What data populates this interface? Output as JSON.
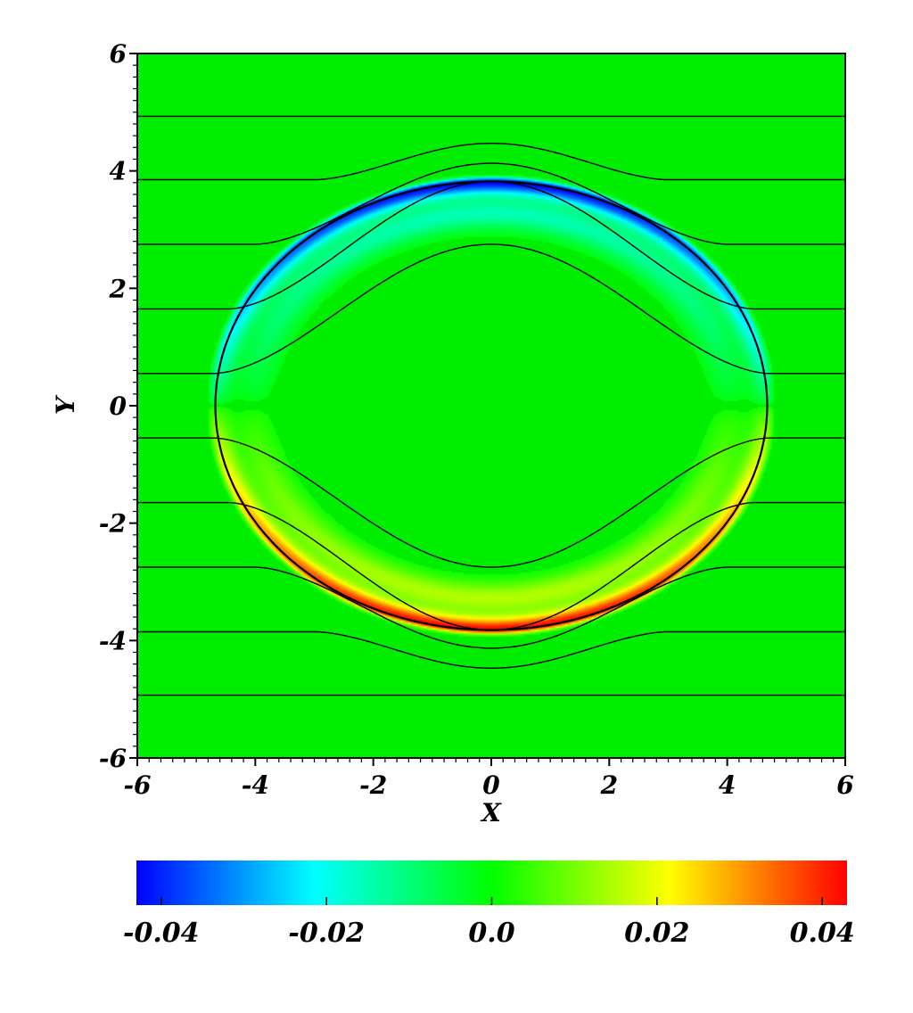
{
  "chart_data": {
    "type": "heatmap",
    "title": "",
    "xlabel": "X",
    "ylabel": "Y",
    "xlim": [
      -6,
      6
    ],
    "ylim": [
      -6,
      6
    ],
    "x_ticks": [
      "-6",
      "-4",
      "-2",
      "0",
      "2",
      "4",
      "6"
    ],
    "y_ticks": [
      "6",
      "4",
      "2",
      "0",
      "-2",
      "-4",
      "-6"
    ],
    "x_tick_values": [
      -6,
      -4,
      -2,
      0,
      2,
      4,
      6
    ],
    "y_tick_values": [
      6,
      4,
      2,
      0,
      -2,
      -4,
      -6
    ],
    "colorbar": {
      "orientation": "horizontal",
      "placement": "bottom",
      "range": [
        -0.043,
        0.043
      ],
      "ticks": [
        "-0.04",
        "-0.02",
        "0.0",
        "0.02",
        "0.04"
      ],
      "tick_values": [
        -0.04,
        -0.02,
        0.0,
        0.02,
        0.04
      ],
      "colormap": [
        "#0000ff",
        "#00ffff",
        "#00ff00",
        "#ffff00",
        "#ff0000"
      ]
    },
    "background_color": "#00ee00",
    "field": {
      "description_free": true,
      "ring_radius_x": 4.7,
      "ring_radius_y": 3.82,
      "upper_half_sign": -1,
      "lower_half_sign": 1,
      "peak_value": 0.043
    },
    "contour_lines": [
      {
        "far_y": 4.93,
        "center_y": 4.93,
        "flat_x": 6.0
      },
      {
        "far_y": 3.85,
        "center_y": 4.47,
        "flat_x": 3.0
      },
      {
        "far_y": 2.75,
        "center_y": 4.13,
        "flat_x": 4.0
      },
      {
        "far_y": 1.65,
        "center_y": 3.82,
        "flat_x": 4.45
      },
      {
        "far_y": 0.55,
        "center_y": 2.75,
        "flat_x": 4.7
      },
      {
        "far_y": -0.55,
        "center_y": -2.75,
        "flat_x": 4.7
      },
      {
        "far_y": -1.65,
        "center_y": -3.82,
        "flat_x": 4.45
      },
      {
        "far_y": -2.75,
        "center_y": -4.13,
        "flat_x": 4.0
      },
      {
        "far_y": -3.85,
        "center_y": -4.47,
        "flat_x": 3.0
      },
      {
        "far_y": -4.93,
        "center_y": -4.93,
        "flat_x": 6.0
      }
    ]
  }
}
